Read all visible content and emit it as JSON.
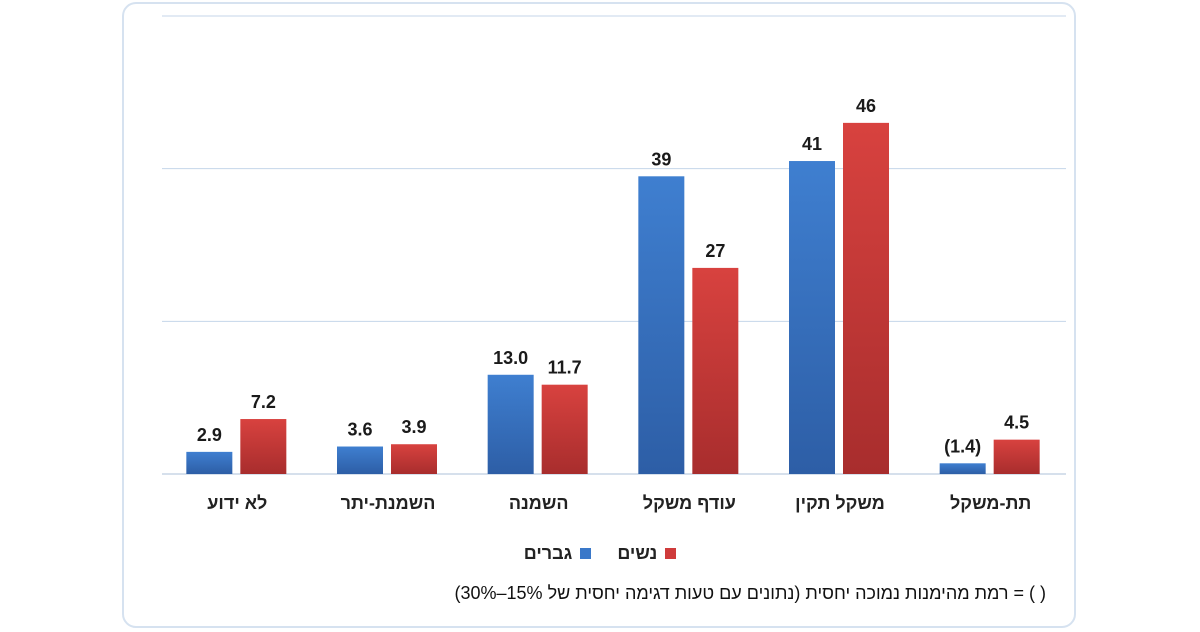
{
  "chart_data": {
    "type": "bar",
    "categories": [
      "לא ידוע",
      "השמנת-יתר",
      "השמנה",
      "עודף משקל",
      "משקל תקין",
      "תת-משקל"
    ],
    "series": [
      {
        "name": "גברים",
        "color": "#3a78c9",
        "values": [
          2.9,
          3.6,
          13.0,
          39,
          41,
          1.4
        ],
        "labels": [
          "2.9",
          "3.6",
          "13.0",
          "39",
          "41",
          "(1.4)"
        ]
      },
      {
        "name": "נשים",
        "color": "#cf3b3b",
        "values": [
          7.2,
          3.9,
          11.7,
          27,
          46,
          4.5
        ],
        "labels": [
          "7.2",
          "3.9",
          "11.7",
          "27",
          "46",
          "4.5"
        ]
      }
    ],
    "ylim": [
      0,
      60
    ],
    "gridlines": [
      0,
      20,
      40,
      60
    ],
    "title": "",
    "xlabel": "",
    "ylabel": ""
  },
  "legend": {
    "women": "נשים",
    "men": "גברים"
  },
  "footnote": "( ) = רמת מהימנות נמוכה יחסית (נתונים עם טעות דגימה יחסית של 15%–30%)"
}
